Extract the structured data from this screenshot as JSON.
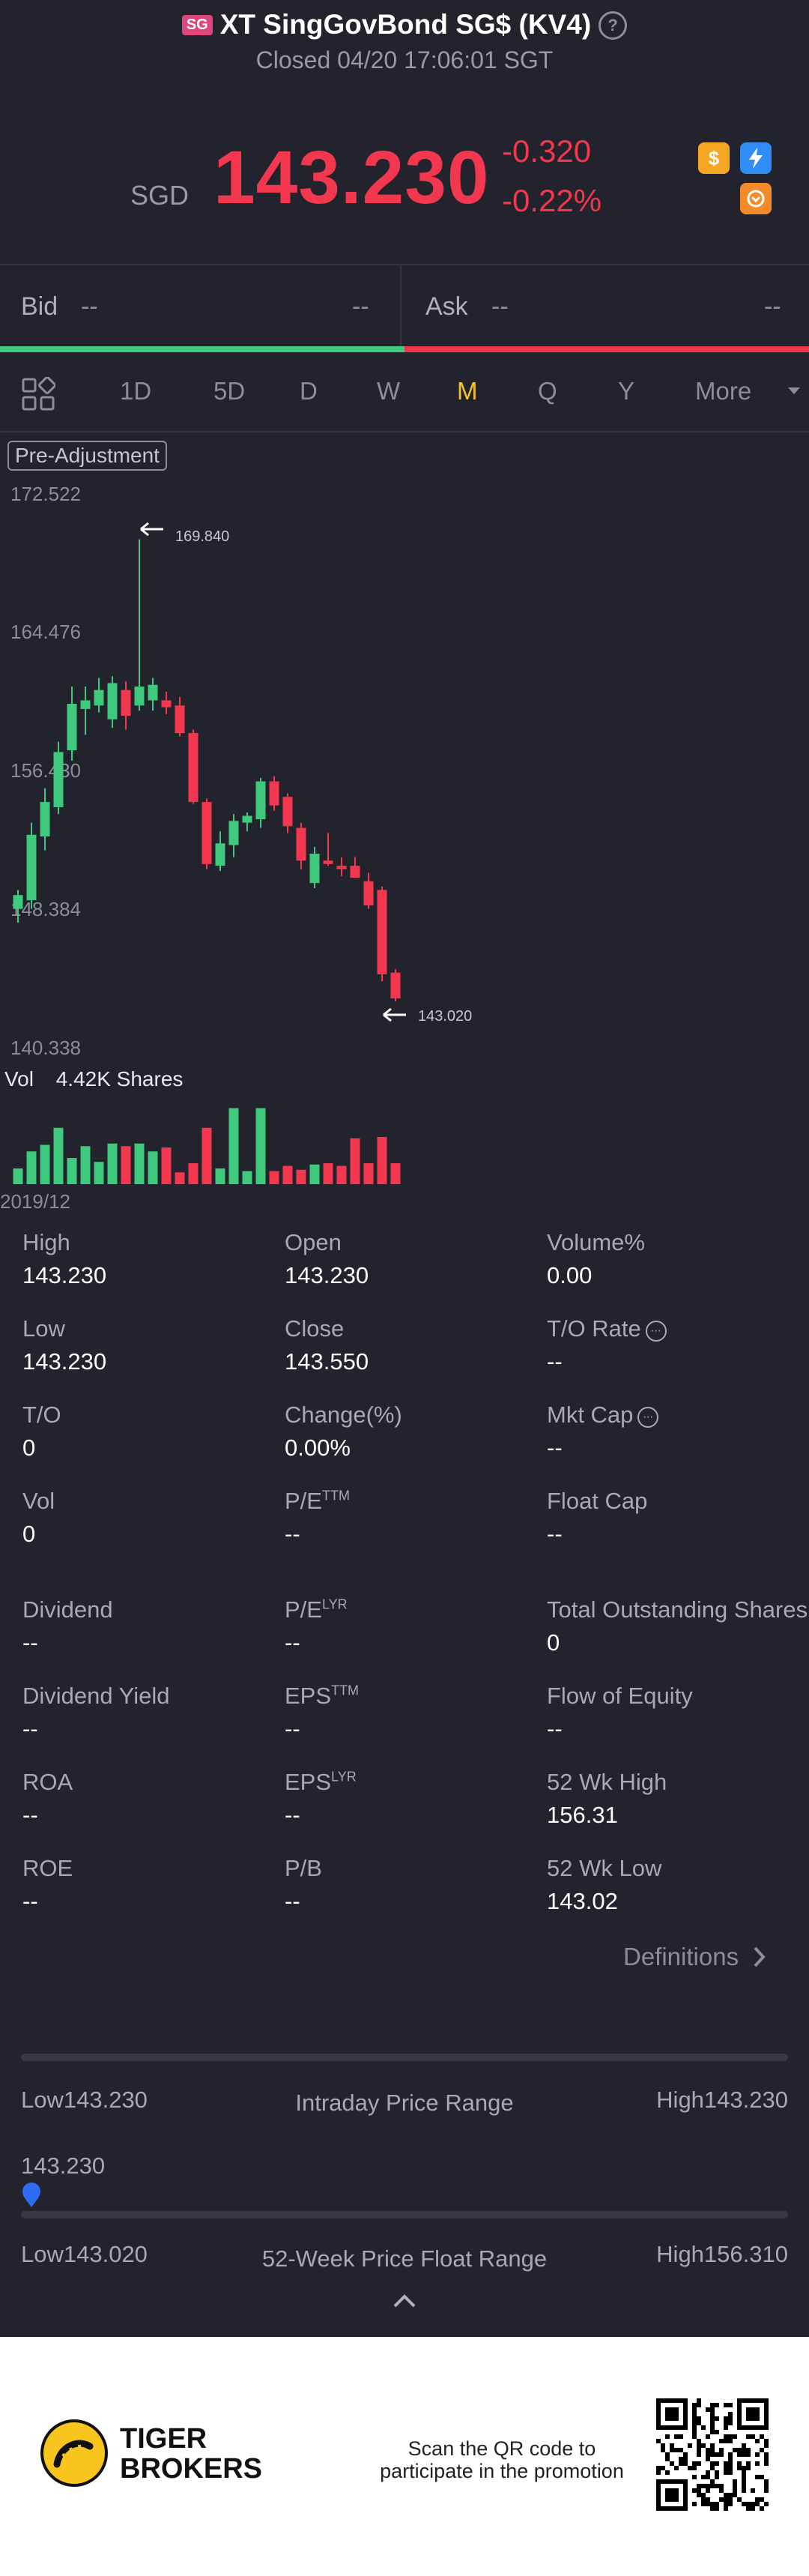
{
  "header": {
    "region_badge": "SG",
    "title": "XT SingGovBond SG$ (KV4)",
    "help_glyph": "?",
    "status": "Closed 04/20 17:06:01 SGT"
  },
  "quote": {
    "currency": "SGD",
    "price": "143.230",
    "change": "-0.320",
    "change_pct": "-0.22%",
    "icons": [
      "dollar-icon",
      "lightning-icon",
      "exchange-icon"
    ]
  },
  "bidask": {
    "bid_label": "Bid",
    "bid_price": "--",
    "bid_size": "--",
    "ask_label": "Ask",
    "ask_price": "--",
    "ask_size": "--"
  },
  "tabs": {
    "items": [
      "1D",
      "5D",
      "D",
      "W",
      "M",
      "Q",
      "Y",
      "More"
    ],
    "active": "M"
  },
  "chart": {
    "mode_label": "Pre-Adjustment",
    "y_labels": [
      "172.522",
      "164.476",
      "156.430",
      "148.384",
      "140.338"
    ],
    "max_marker": "169.840",
    "min_marker": "143.020",
    "vol_label": "Vol",
    "vol_value": "4.42K Shares",
    "start_date": "2019/12"
  },
  "chart_data": {
    "type": "candlestick",
    "title": "",
    "ylim": [
      140.338,
      172.522
    ],
    "candles": [
      {
        "o": 148.4,
        "h": 149.5,
        "l": 147.6,
        "c": 149.2
      },
      {
        "o": 148.9,
        "h": 153.4,
        "l": 148.4,
        "c": 152.7
      },
      {
        "o": 152.6,
        "h": 155.4,
        "l": 151.8,
        "c": 154.6
      },
      {
        "o": 154.3,
        "h": 158.1,
        "l": 153.9,
        "c": 157.5
      },
      {
        "o": 157.6,
        "h": 161.3,
        "l": 157.0,
        "c": 160.3
      },
      {
        "o": 160.0,
        "h": 161.3,
        "l": 158.5,
        "c": 160.5
      },
      {
        "o": 160.2,
        "h": 161.8,
        "l": 159.8,
        "c": 161.1
      },
      {
        "o": 159.4,
        "h": 161.9,
        "l": 158.9,
        "c": 161.5
      },
      {
        "o": 161.1,
        "h": 161.6,
        "l": 158.8,
        "c": 159.6
      },
      {
        "o": 160.2,
        "h": 169.84,
        "l": 159.9,
        "c": 161.3
      },
      {
        "o": 160.5,
        "h": 161.8,
        "l": 159.9,
        "c": 161.4
      },
      {
        "o": 160.5,
        "h": 161.0,
        "l": 159.7,
        "c": 160.1
      },
      {
        "o": 160.2,
        "h": 160.7,
        "l": 158.4,
        "c": 158.6
      },
      {
        "o": 158.6,
        "h": 158.8,
        "l": 154.5,
        "c": 154.6
      },
      {
        "o": 154.6,
        "h": 154.8,
        "l": 150.7,
        "c": 151.0
      },
      {
        "o": 150.9,
        "h": 152.9,
        "l": 150.6,
        "c": 152.2
      },
      {
        "o": 152.1,
        "h": 153.9,
        "l": 151.4,
        "c": 153.5
      },
      {
        "o": 153.4,
        "h": 154.0,
        "l": 152.9,
        "c": 153.8
      },
      {
        "o": 153.6,
        "h": 156.0,
        "l": 153.1,
        "c": 155.8
      },
      {
        "o": 155.8,
        "h": 156.1,
        "l": 154.1,
        "c": 154.4
      },
      {
        "o": 154.9,
        "h": 155.1,
        "l": 152.8,
        "c": 153.2
      },
      {
        "o": 153.1,
        "h": 153.4,
        "l": 150.7,
        "c": 151.2
      },
      {
        "o": 149.9,
        "h": 152.0,
        "l": 149.6,
        "c": 151.6
      },
      {
        "o": 151.2,
        "h": 152.8,
        "l": 150.9,
        "c": 151.0
      },
      {
        "o": 150.9,
        "h": 151.4,
        "l": 150.3,
        "c": 150.7
      },
      {
        "o": 150.9,
        "h": 151.4,
        "l": 150.2,
        "c": 150.2
      },
      {
        "o": 150.0,
        "h": 150.5,
        "l": 148.4,
        "c": 148.6
      },
      {
        "o": 149.5,
        "h": 149.7,
        "l": 144.2,
        "c": 144.6
      },
      {
        "o": 144.7,
        "h": 144.9,
        "l": 143.02,
        "c": 143.2
      }
    ],
    "volume": [
      12,
      25,
      30,
      43,
      20,
      29,
      17,
      31,
      29,
      31,
      25,
      28,
      9,
      16,
      43,
      12,
      58,
      10,
      58,
      10,
      14,
      11,
      15,
      16,
      14,
      35,
      16,
      36,
      16
    ],
    "colors": {
      "up": "#3ec97d",
      "down": "#f2374f"
    }
  },
  "stats": {
    "rows": [
      [
        {
          "label": "High",
          "value": "143.230"
        },
        {
          "label": "Open",
          "value": "143.230"
        },
        {
          "label": "Volume%",
          "value": "0.00"
        }
      ],
      [
        {
          "label": "Low",
          "value": "143.230"
        },
        {
          "label": "Close",
          "value": "143.550"
        },
        {
          "label": "T/O Rate",
          "value": "--",
          "info": true
        }
      ],
      [
        {
          "label": "T/O",
          "value": "0"
        },
        {
          "label": "Change(%)",
          "value": "0.00%"
        },
        {
          "label": "Mkt Cap",
          "value": "--",
          "info": true
        }
      ],
      [
        {
          "label": "Vol",
          "value": "0"
        },
        {
          "label": "P/E",
          "sup": "TTM",
          "value": "--"
        },
        {
          "label": "Float Cap",
          "value": "--"
        }
      ],
      [
        {
          "label": "Dividend",
          "value": "--"
        },
        {
          "label": "P/E",
          "sup": "LYR",
          "value": "--"
        },
        {
          "label": "Total Outstanding Shares",
          "value": "0"
        }
      ],
      [
        {
          "label": "Dividend Yield",
          "value": "--"
        },
        {
          "label": "EPS",
          "sup": "TTM",
          "value": "--"
        },
        {
          "label": "Flow of Equity",
          "value": "--"
        }
      ],
      [
        {
          "label": "ROA",
          "value": "--"
        },
        {
          "label": "EPS",
          "sup": "LYR",
          "value": "--"
        },
        {
          "label": "52 Wk High",
          "value": "156.31"
        }
      ],
      [
        {
          "label": "ROE",
          "value": "--"
        },
        {
          "label": "P/B",
          "value": "--"
        },
        {
          "label": "52 Wk Low",
          "value": "143.02"
        }
      ]
    ],
    "definitions": "Definitions"
  },
  "ranges": {
    "intraday": {
      "low": "Low143.230",
      "title": "Intraday Price Range",
      "high": "High143.230",
      "current": "143.230",
      "position": 0.0
    },
    "week52": {
      "low": "Low143.020",
      "title": "52-Week Price Float Range",
      "high": "High156.310"
    }
  },
  "footer": {
    "brand_line1": "TIGER",
    "brand_line2": "BROKERS",
    "promo_line1": "Scan the QR code to",
    "promo_line2": "participate in the promotion"
  }
}
